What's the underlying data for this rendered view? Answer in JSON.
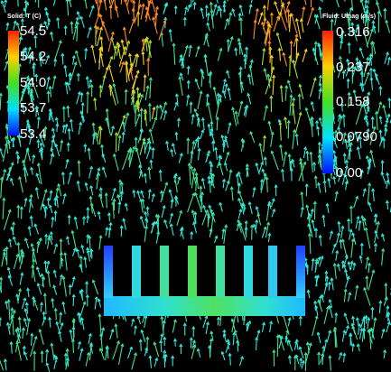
{
  "solid_legend": {
    "title": "Solid: T (C)",
    "labels": [
      "54.5",
      "54.2",
      "54.0",
      "53.7",
      "53.4"
    ]
  },
  "fluid_legend": {
    "title": "Fluid: Umag (m/s)",
    "labels": [
      "0.316",
      "0.237",
      "0.158",
      "0.0790",
      "0.00"
    ]
  }
}
